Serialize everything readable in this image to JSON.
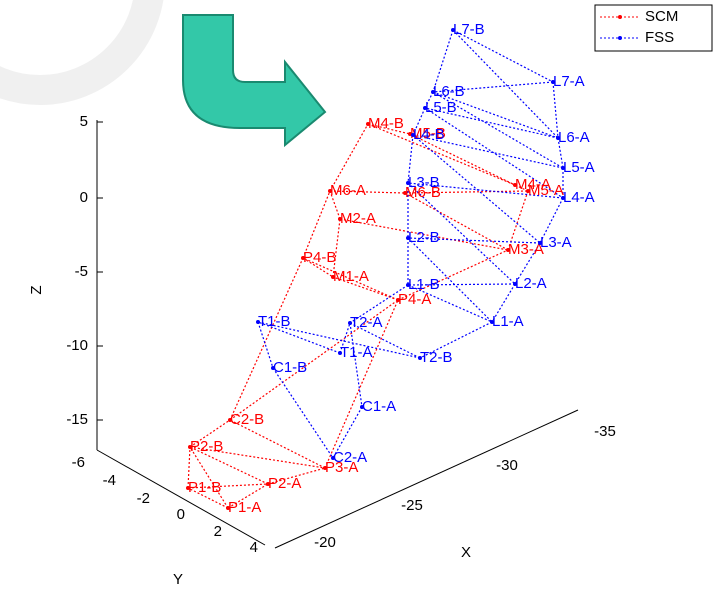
{
  "legend": [
    {
      "name": "SCM",
      "color": "#ff0000"
    },
    {
      "name": "FSS",
      "color": "#0000ff"
    }
  ],
  "axes": {
    "x_label": "X",
    "y_label": "Y",
    "z_label": "Z",
    "z_ticks": [
      "5",
      "0",
      "-5",
      "-10",
      "-15"
    ],
    "y_ticks": [
      "-6",
      "-4",
      "-2",
      "0",
      "2",
      "4"
    ],
    "x_ticks": [
      "-20",
      "-25",
      "-30",
      "-35"
    ]
  },
  "nodes": {
    "scm": [
      "P1-A",
      "P1-B",
      "P2-A",
      "P2-B",
      "P3-A",
      "C2-B",
      "P4-A",
      "P4-B",
      "M1-A",
      "M2-A",
      "M3-A",
      "M4-A",
      "M4-B",
      "M5-A",
      "M5-B",
      "M6-A",
      "M6-B"
    ],
    "fss": [
      "L7-B",
      "L7-A",
      "L6-B",
      "L6-A",
      "L5-B",
      "L5-A",
      "L4-B",
      "L4-A",
      "L3-B",
      "L3-A",
      "L2-B",
      "L2-A",
      "L1-B",
      "L1-A",
      "T1-B",
      "T1-A",
      "T2-A",
      "T2-B",
      "C1-B",
      "C1-A",
      "C2-A"
    ]
  }
}
